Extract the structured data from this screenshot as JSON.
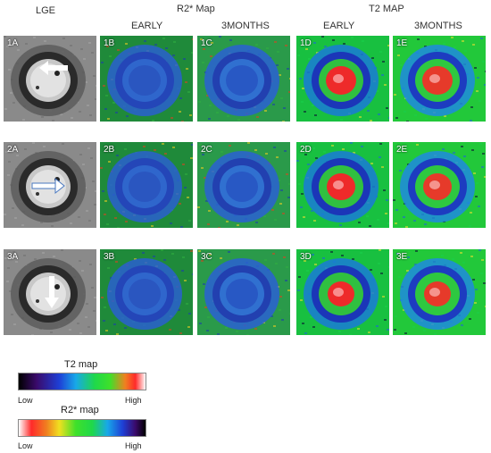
{
  "headers": {
    "lge": "LGE",
    "r2star_map": "R2* Map",
    "t2_map": "T2 MAP",
    "r2_early": "EARLY",
    "r2_3m": "3MONTHS",
    "t2_early": "EARLY",
    "t2_3m": "3MONTHS"
  },
  "rows": [
    {
      "labels": [
        "1A",
        "1B",
        "1C",
        "1D",
        "1E"
      ]
    },
    {
      "labels": [
        "2A",
        "2B",
        "2C",
        "2D",
        "2E"
      ]
    },
    {
      "labels": [
        "3A",
        "3B",
        "3C",
        "3D",
        "3E"
      ]
    }
  ],
  "legend": {
    "t2": {
      "title": "T2 map",
      "low": "Low",
      "high": "High"
    },
    "r2": {
      "title": "R2* map",
      "low": "Low",
      "high": "High"
    }
  }
}
